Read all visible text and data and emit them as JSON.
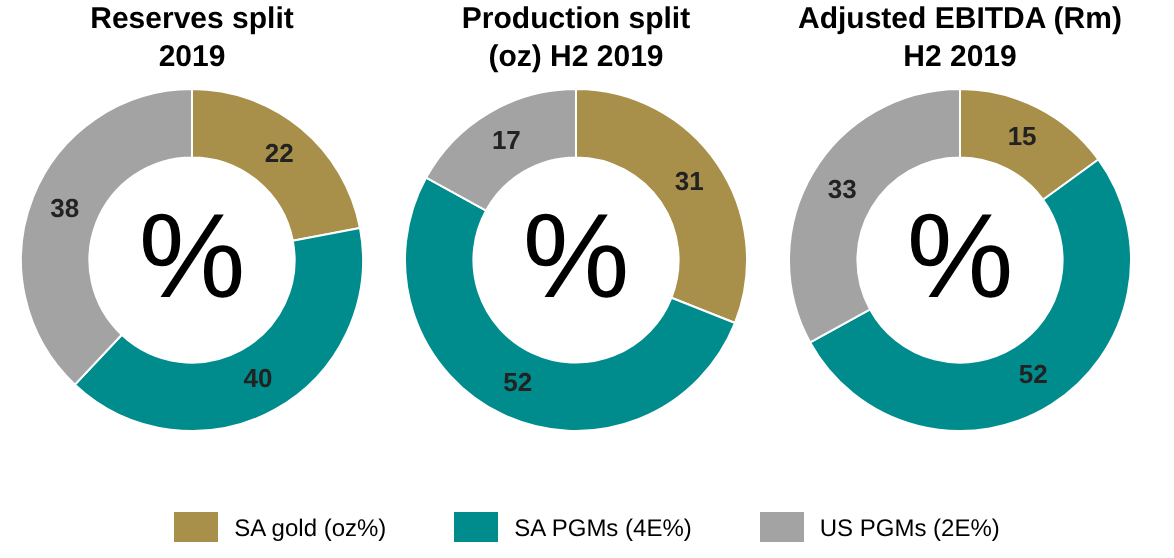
{
  "chart_data": [
    {
      "type": "donut",
      "title": "Reserves split\n2019",
      "categories": [
        "SA gold (oz%)",
        "SA PGMs (4E%)",
        "US PGMs (2E%)"
      ],
      "values": [
        22,
        40,
        38
      ],
      "colors": [
        "#a8904a",
        "#008b8c",
        "#a3a3a3"
      ],
      "data_labels": true,
      "annotations": [
        "%"
      ],
      "legend": "bottom"
    },
    {
      "type": "donut",
      "title": "Production split\n(oz) H2 2019",
      "categories": [
        null,
        null,
        null
      ],
      "values": [
        31,
        52,
        17
      ],
      "colors": [
        "#a8904a",
        "#008b8c",
        "#a3a3a3"
      ],
      "data_labels": true,
      "annotations": [
        "%"
      ]
    },
    {
      "type": "donut",
      "title": "Adjusted EBITDA (Rm)\nH2 2019",
      "categories": [
        null,
        null,
        null
      ],
      "values": [
        15,
        52,
        33
      ],
      "colors": [
        "#a8904a",
        "#008b8c",
        "#a3a3a3"
      ],
      "data_labels": true,
      "annotations": [
        "%"
      ]
    }
  ]
}
